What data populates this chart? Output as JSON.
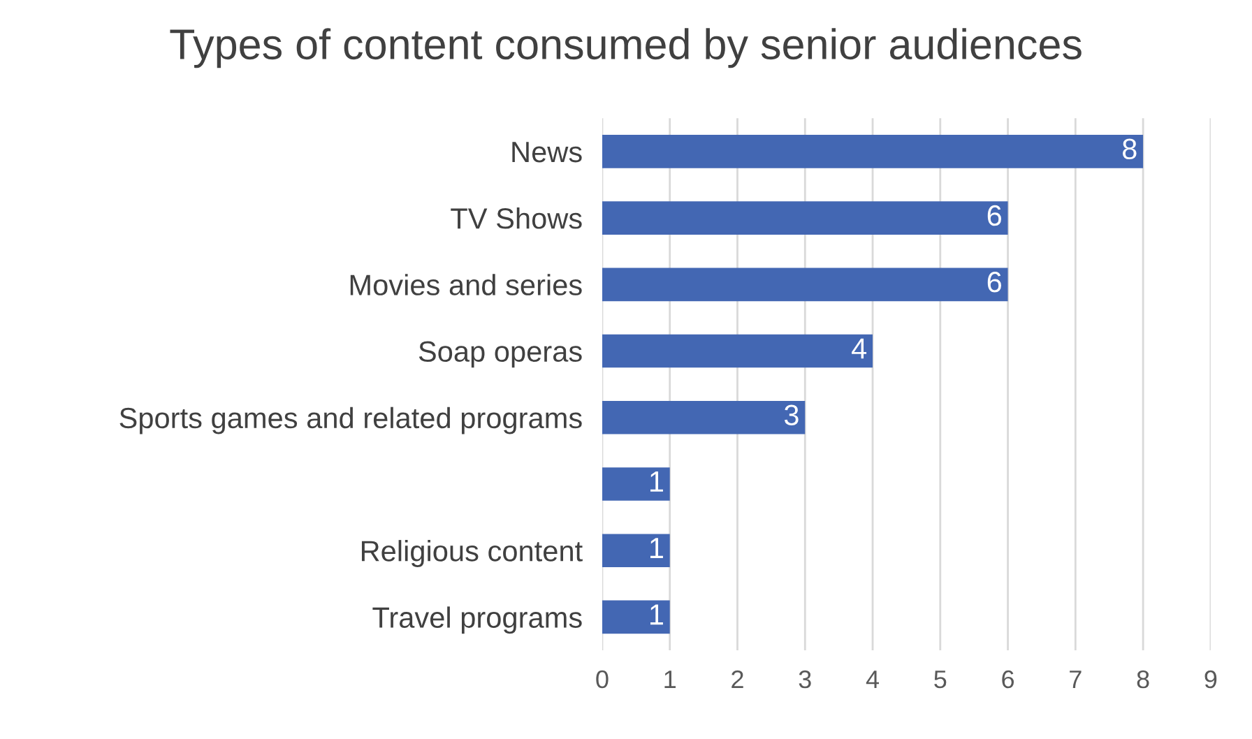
{
  "chart_data": {
    "type": "bar",
    "orientation": "horizontal",
    "title": "Types of content consumed by senior audiences",
    "categories": [
      "News",
      "TV Shows",
      "Movies and series",
      "Soap operas",
      "Sports games and related programs",
      null,
      "Religious content",
      "Travel programs"
    ],
    "values": [
      8,
      6,
      6,
      4,
      3,
      1,
      1,
      1
    ],
    "color": "#4367b3",
    "xlim": [
      0,
      9
    ],
    "xticks": [
      0,
      1,
      2,
      3,
      4,
      5,
      6,
      7,
      8,
      9
    ],
    "grid": "x",
    "data_labels": true
  }
}
